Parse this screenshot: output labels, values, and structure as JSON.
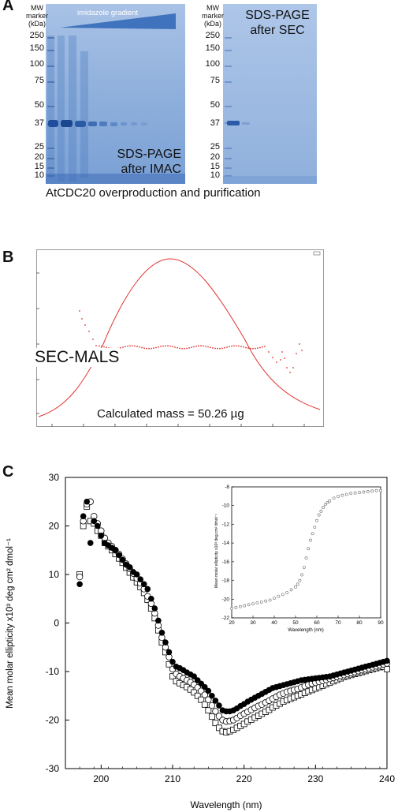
{
  "panel_a": {
    "letter": "A",
    "caption": "AtCDC20 overproduction and purification",
    "gel_left": {
      "mw_header": [
        "MW",
        "marker",
        "(kDa)"
      ],
      "gradient_label": "imidazole gradient",
      "title_line1": "SDS-PAGE",
      "title_line2": "after IMAC",
      "mw_markers": [
        "250",
        "150",
        "100",
        "75",
        "50",
        "37",
        "25",
        "20",
        "15",
        "10"
      ]
    },
    "gel_right": {
      "mw_header": [
        "MW",
        "marker",
        "(kDa)"
      ],
      "title_line1": "SDS-PAGE",
      "title_line2": "after SEC",
      "mw_markers": [
        "250",
        "150",
        "100",
        "75",
        "50",
        "37",
        "25",
        "20",
        "15",
        "10"
      ]
    },
    "colors": {
      "gel": "#8fb0dc",
      "band": "#1f4f9c"
    }
  },
  "panel_b": {
    "letter": "B",
    "label": "SEC-MALS",
    "result": "Calculated mass = 50.26 µg",
    "colors": {
      "trace": "#e0342f"
    }
  },
  "panel_c": {
    "letter": "C",
    "main_chart": {
      "type": "scatter",
      "xlabel": "Wavelength (nm)",
      "ylabel": "Mean molar ellipticity x10³ deg cm² dmol⁻¹",
      "xlim": [
        195,
        240
      ],
      "ylim": [
        -30,
        30
      ],
      "x_ticks": [
        "200",
        "210",
        "220",
        "230",
        "240"
      ],
      "y_ticks": [
        "30",
        "20",
        "10",
        "0",
        "-10",
        "-20",
        "-30"
      ]
    },
    "inset_chart": {
      "type": "scatter",
      "xlabel": "Wavelength (nm)",
      "ylabel": "Mean molar ellipticity x10³ deg cm² dmol⁻¹",
      "xlim": [
        20,
        90
      ],
      "ylim": [
        -22,
        -8
      ],
      "x_ticks": [
        "20",
        "30",
        "40",
        "50",
        "60",
        "70",
        "80",
        "90"
      ],
      "y_ticks": [
        "-8",
        "-10",
        "-12",
        "-14",
        "-16",
        "-18",
        "-20",
        "-22"
      ]
    }
  },
  "chart_data": [
    {
      "type": "scatter",
      "xlabel": "Wavelength (nm)",
      "ylabel": "Mean molar ellipticity x10³ deg cm² dmol⁻¹",
      "xlim": [
        195,
        240
      ],
      "ylim": [
        -30,
        30
      ],
      "series": [
        {
          "marker": "filled-circle",
          "x": [
            197,
            197.5,
            198,
            198.5,
            199,
            199.5,
            200,
            200.5,
            201,
            201.5,
            202,
            202.5,
            203,
            203.5,
            204,
            204.5,
            205,
            205.5,
            206,
            206.5,
            207,
            207.5,
            208,
            208.5,
            209,
            209.5,
            210,
            210.5,
            211,
            211.5,
            212,
            212.5,
            213,
            213.5,
            214,
            214.5,
            215,
            215.5,
            216,
            216.5,
            217,
            217.5,
            218,
            218.5,
            219,
            219.5,
            220,
            220.5,
            221,
            221.5,
            222,
            222.5,
            223,
            223.5,
            224,
            224.5,
            225,
            225.5,
            226,
            226.5,
            227,
            227.5,
            228,
            228.5,
            229,
            229.5,
            230,
            230.5,
            231,
            231.5,
            232,
            232.5,
            233,
            233.5,
            234,
            234.5,
            235,
            235.5,
            236,
            236.5,
            237,
            237.5,
            238,
            238.5,
            239,
            239.5,
            240
          ],
          "y": [
            8,
            22,
            25,
            16.5,
            21,
            20,
            18,
            16.5,
            16,
            15.5,
            15,
            14,
            13,
            12,
            11.5,
            10.5,
            10,
            9,
            8,
            7,
            5,
            3,
            0.5,
            -2,
            -4,
            -6,
            -8,
            -9,
            -9.3,
            -9.7,
            -10.2,
            -10.6,
            -11,
            -11.8,
            -12.5,
            -13.2,
            -14,
            -15,
            -16,
            -17,
            -18,
            -18.2,
            -18.2,
            -18,
            -17.6,
            -17.1,
            -16.7,
            -16.2,
            -15.8,
            -15.4,
            -15,
            -14.6,
            -14.2,
            -13.8,
            -13.4,
            -13.2,
            -13,
            -12.8,
            -12.6,
            -12.4,
            -12.2,
            -12,
            -11.8,
            -11.7,
            -11.6,
            -11.5,
            -11.4,
            -11.3,
            -11.2,
            -11.1,
            -11,
            -10.8,
            -10.6,
            -10.4,
            -10.2,
            -10,
            -9.8,
            -9.6,
            -9.4,
            -9.2,
            -9,
            -8.8,
            -8.6,
            -8.4,
            -8.2,
            -8,
            -7.8
          ]
        },
        {
          "marker": "open-circle",
          "x": [
            197,
            197.5,
            198,
            198.5,
            199,
            199.5,
            200,
            200.5,
            201,
            201.5,
            202,
            202.5,
            203,
            203.5,
            204,
            204.5,
            205,
            205.5,
            206,
            206.5,
            207,
            207.5,
            208,
            208.5,
            209,
            209.5,
            210,
            210.5,
            211,
            211.5,
            212,
            212.5,
            213,
            213.5,
            214,
            214.5,
            215,
            215.5,
            216,
            216.5,
            217,
            217.5,
            218,
            218.5,
            219,
            219.5,
            220,
            220.5,
            221,
            221.5,
            222,
            222.5,
            223,
            223.5,
            224,
            224.5,
            225,
            225.5,
            226,
            226.5,
            227,
            227.5,
            228,
            228.5,
            229,
            229.5,
            230,
            230.5,
            231,
            231.5,
            232,
            232.5,
            233,
            233.5,
            234,
            234.5,
            235,
            235.5,
            236,
            236.5,
            237,
            237.5,
            238,
            238.5,
            239,
            239.5,
            240
          ],
          "y": [
            9.5,
            21,
            24.5,
            25,
            22,
            20.5,
            19,
            17.5,
            16.5,
            15.8,
            15,
            14.2,
            13.2,
            12.2,
            11.2,
            10.2,
            9.2,
            8.2,
            7,
            5.5,
            4,
            2,
            -0.5,
            -3,
            -5,
            -7,
            -9.5,
            -10.5,
            -11,
            -11.4,
            -11.8,
            -12.2,
            -12.7,
            -13.3,
            -14,
            -14.8,
            -15.8,
            -17,
            -18.2,
            -19.2,
            -20,
            -20.3,
            -20.2,
            -20,
            -19.6,
            -19.1,
            -18.7,
            -18.3,
            -17.9,
            -17.5,
            -17.1,
            -16.8,
            -16.4,
            -16,
            -15.6,
            -15.2,
            -14.8,
            -14.5,
            -14.2,
            -14,
            -13.8,
            -13.6,
            -13.3,
            -13,
            -12.7,
            -12.5,
            -12.3,
            -12.1,
            -11.9,
            -11.7,
            -11.5,
            -11.3,
            -11.1,
            -10.9,
            -10.7,
            -10.5,
            -10.3,
            -10.1,
            -9.9,
            -9.7,
            -9.5,
            -9.3,
            -9.1,
            -8.9,
            -8.7,
            -8.5,
            -8.3
          ]
        },
        {
          "marker": "open-square",
          "x": [
            197,
            197.5,
            198,
            198.5,
            199,
            199.5,
            200,
            200.5,
            201,
            201.5,
            202,
            202.5,
            203,
            203.5,
            204,
            204.5,
            205,
            205.5,
            206,
            206.5,
            207,
            207.5,
            208,
            208.5,
            209,
            209.5,
            210,
            210.5,
            211,
            211.5,
            212,
            212.5,
            213,
            213.5,
            214,
            214.5,
            215,
            215.5,
            216,
            216.5,
            217,
            217.5,
            218,
            218.5,
            219,
            219.5,
            220,
            220.5,
            221,
            221.5,
            222,
            222.5,
            223,
            223.5,
            224,
            224.5,
            225,
            225.5,
            226,
            226.5,
            227,
            227.5,
            228,
            228.5,
            229,
            229.5,
            230,
            230.5,
            231,
            231.5,
            232,
            232.5,
            233,
            233.5,
            234,
            234.5,
            235,
            235.5,
            236,
            236.5,
            237,
            237.5,
            238,
            238.5,
            239,
            239.5,
            240
          ],
          "y": [
            10,
            20,
            24,
            21,
            20.5,
            19,
            18,
            16.5,
            15.8,
            15,
            14.2,
            13.3,
            12.4,
            11.4,
            10.4,
            9.4,
            8.4,
            7.4,
            6.2,
            4.8,
            3,
            1,
            -1.5,
            -4,
            -6,
            -8.5,
            -11,
            -12,
            -12.4,
            -12.8,
            -13.2,
            -13.7,
            -14.3,
            -15,
            -15.8,
            -16.8,
            -18,
            -19.3,
            -20.6,
            -21.6,
            -22.3,
            -22.5,
            -22.3,
            -22,
            -21.6,
            -21.2,
            -20.8,
            -20.3,
            -19.9,
            -19.5,
            -19.1,
            -18.7,
            -18.3,
            -17.9,
            -17.4,
            -17,
            -16.6,
            -16.2,
            -15.9,
            -15.6,
            -15.3,
            -15,
            -14.7,
            -14.4,
            -14.1,
            -13.8,
            -13.5,
            -13.2,
            -12.9,
            -12.6,
            -12.3,
            -12,
            -11.7,
            -11.4,
            -11.1,
            -10.9,
            -10.7,
            -10.5,
            -10.3,
            -10.1,
            -9.9,
            -9.7,
            -9.5,
            -9.3,
            -9.1,
            -9,
            -9.5
          ]
        }
      ]
    },
    {
      "type": "scatter",
      "xlabel": "Wavelength (nm)",
      "ylabel": "Mean molar ellipticity x10³ deg cm² dmol⁻¹",
      "xlim": [
        20,
        90
      ],
      "ylim": [
        -22,
        -8
      ],
      "series": [
        {
          "marker": "open-circle",
          "x": [
            20,
            22,
            24,
            26,
            28,
            30,
            32,
            34,
            36,
            38,
            40,
            42,
            44,
            46,
            48,
            50,
            51,
            52,
            53,
            54,
            55,
            56,
            57,
            58,
            59,
            60,
            61,
            62,
            63,
            64,
            65,
            66,
            68,
            70,
            72,
            74,
            76,
            78,
            80,
            82,
            84,
            86,
            88,
            90
          ],
          "y": [
            -21,
            -20.9,
            -20.8,
            -20.7,
            -20.6,
            -20.5,
            -20.4,
            -20.3,
            -20.2,
            -20.1,
            -19.9,
            -19.7,
            -19.5,
            -19.3,
            -19,
            -18.7,
            -18.4,
            -18,
            -17.4,
            -16.6,
            -15.6,
            -14.6,
            -13.7,
            -13,
            -12.3,
            -11.6,
            -11,
            -10.6,
            -10.2,
            -9.9,
            -9.7,
            -9.5,
            -9.2,
            -9,
            -8.9,
            -8.8,
            -8.7,
            -8.65,
            -8.6,
            -8.55,
            -8.5,
            -8.45,
            -8.4,
            -8.4
          ]
        }
      ]
    }
  ]
}
